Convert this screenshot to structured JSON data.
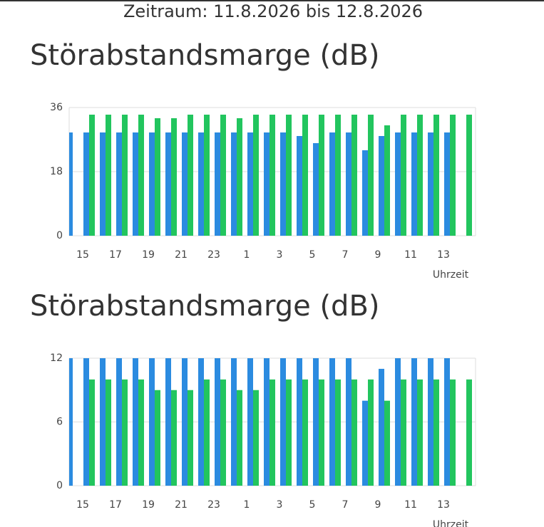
{
  "header": {
    "period": "Zeitraum: 11.8.2026 bis 12.8.2026"
  },
  "chart_data": [
    {
      "type": "bar",
      "title": "Störabstandsmarge (dB)",
      "x_label": "Uhrzeit",
      "categories": [
        null,
        "15",
        null,
        "17",
        null,
        "19",
        null,
        "21",
        null,
        "23",
        null,
        "1",
        null,
        "3",
        null,
        "5",
        null,
        "7",
        null,
        "9",
        null,
        "11",
        null,
        "13",
        null
      ],
      "series": [
        {
          "color": "#2b8be0",
          "values": [
            29,
            29,
            29,
            29,
            29,
            29,
            29,
            29,
            29,
            29,
            29,
            29,
            29,
            29,
            28,
            26,
            29,
            29,
            24,
            28,
            29,
            29,
            29,
            29,
            null
          ]
        },
        {
          "color": "#22c55e",
          "values": [
            null,
            34,
            34,
            34,
            34,
            33,
            33,
            34,
            34,
            34,
            33,
            34,
            34,
            34,
            34,
            34,
            34,
            34,
            34,
            31,
            34,
            34,
            34,
            34,
            34
          ]
        }
      ],
      "ylim": [
        0,
        36
      ],
      "yticks": [
        0,
        18,
        36
      ],
      "grid": true
    },
    {
      "type": "bar",
      "title": "Störabstandsmarge (dB)",
      "x_label": "Uhrzeit",
      "categories": [
        null,
        "15",
        null,
        "17",
        null,
        "19",
        null,
        "21",
        null,
        "23",
        null,
        "1",
        null,
        "3",
        null,
        "5",
        null,
        "7",
        null,
        "9",
        null,
        "11",
        null,
        "13",
        null
      ],
      "series": [
        {
          "color": "#2b8be0",
          "values": [
            12,
            12,
            12,
            12,
            12,
            12,
            12,
            12,
            12,
            12,
            12,
            12,
            12,
            12,
            12,
            12,
            12,
            12,
            8,
            11,
            12,
            12,
            12,
            12,
            null
          ]
        },
        {
          "color": "#22c55e",
          "values": [
            null,
            10,
            10,
            10,
            10,
            9,
            9,
            9,
            10,
            10,
            9,
            9,
            10,
            10,
            10,
            10,
            10,
            10,
            10,
            8,
            10,
            10,
            10,
            10,
            10
          ]
        }
      ],
      "ylim": [
        0,
        12
      ],
      "yticks": [
        0,
        6,
        12
      ],
      "grid": true
    }
  ]
}
